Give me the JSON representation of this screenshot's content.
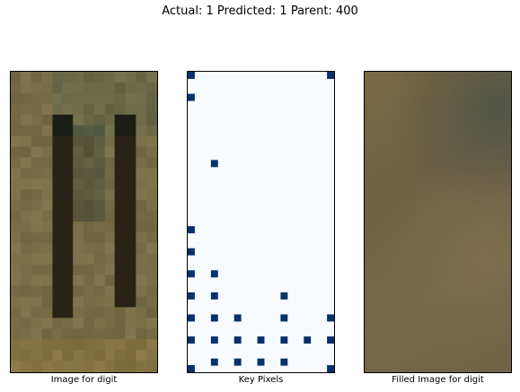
{
  "figure": {
    "title": "Actual: 1 Predicted: 1 Parent: 400"
  },
  "panels": {
    "image": {
      "caption": "Image for digit",
      "grid_cols": 7,
      "grid_rows": 14,
      "base_color": "#7a6e45"
    },
    "key_pixels": {
      "caption": "Key Pixels",
      "background_color": "#f7fbff",
      "mark_color": "#08306b",
      "grid_cols": 7,
      "grid_rows": 14,
      "cells": [
        [
          0,
          0
        ],
        [
          6,
          0
        ],
        [
          0,
          1
        ],
        [
          1,
          4
        ],
        [
          0,
          7
        ],
        [
          0,
          8
        ],
        [
          0,
          9
        ],
        [
          1,
          9
        ],
        [
          0,
          10
        ],
        [
          1,
          10
        ],
        [
          4,
          10
        ],
        [
          0,
          11
        ],
        [
          1,
          11
        ],
        [
          2,
          11
        ],
        [
          4,
          11
        ],
        [
          6,
          11
        ],
        [
          0,
          12
        ],
        [
          1,
          12
        ],
        [
          2,
          12
        ],
        [
          3,
          12
        ],
        [
          4,
          12
        ],
        [
          5,
          12
        ],
        [
          6,
          12
        ],
        [
          1,
          13
        ],
        [
          2,
          13
        ],
        [
          3,
          13
        ],
        [
          4,
          13
        ],
        [
          0,
          13.3
        ],
        [
          6,
          13.3
        ]
      ]
    },
    "filled": {
      "caption": "Filled Image for digit",
      "base_color": "#716647"
    }
  }
}
